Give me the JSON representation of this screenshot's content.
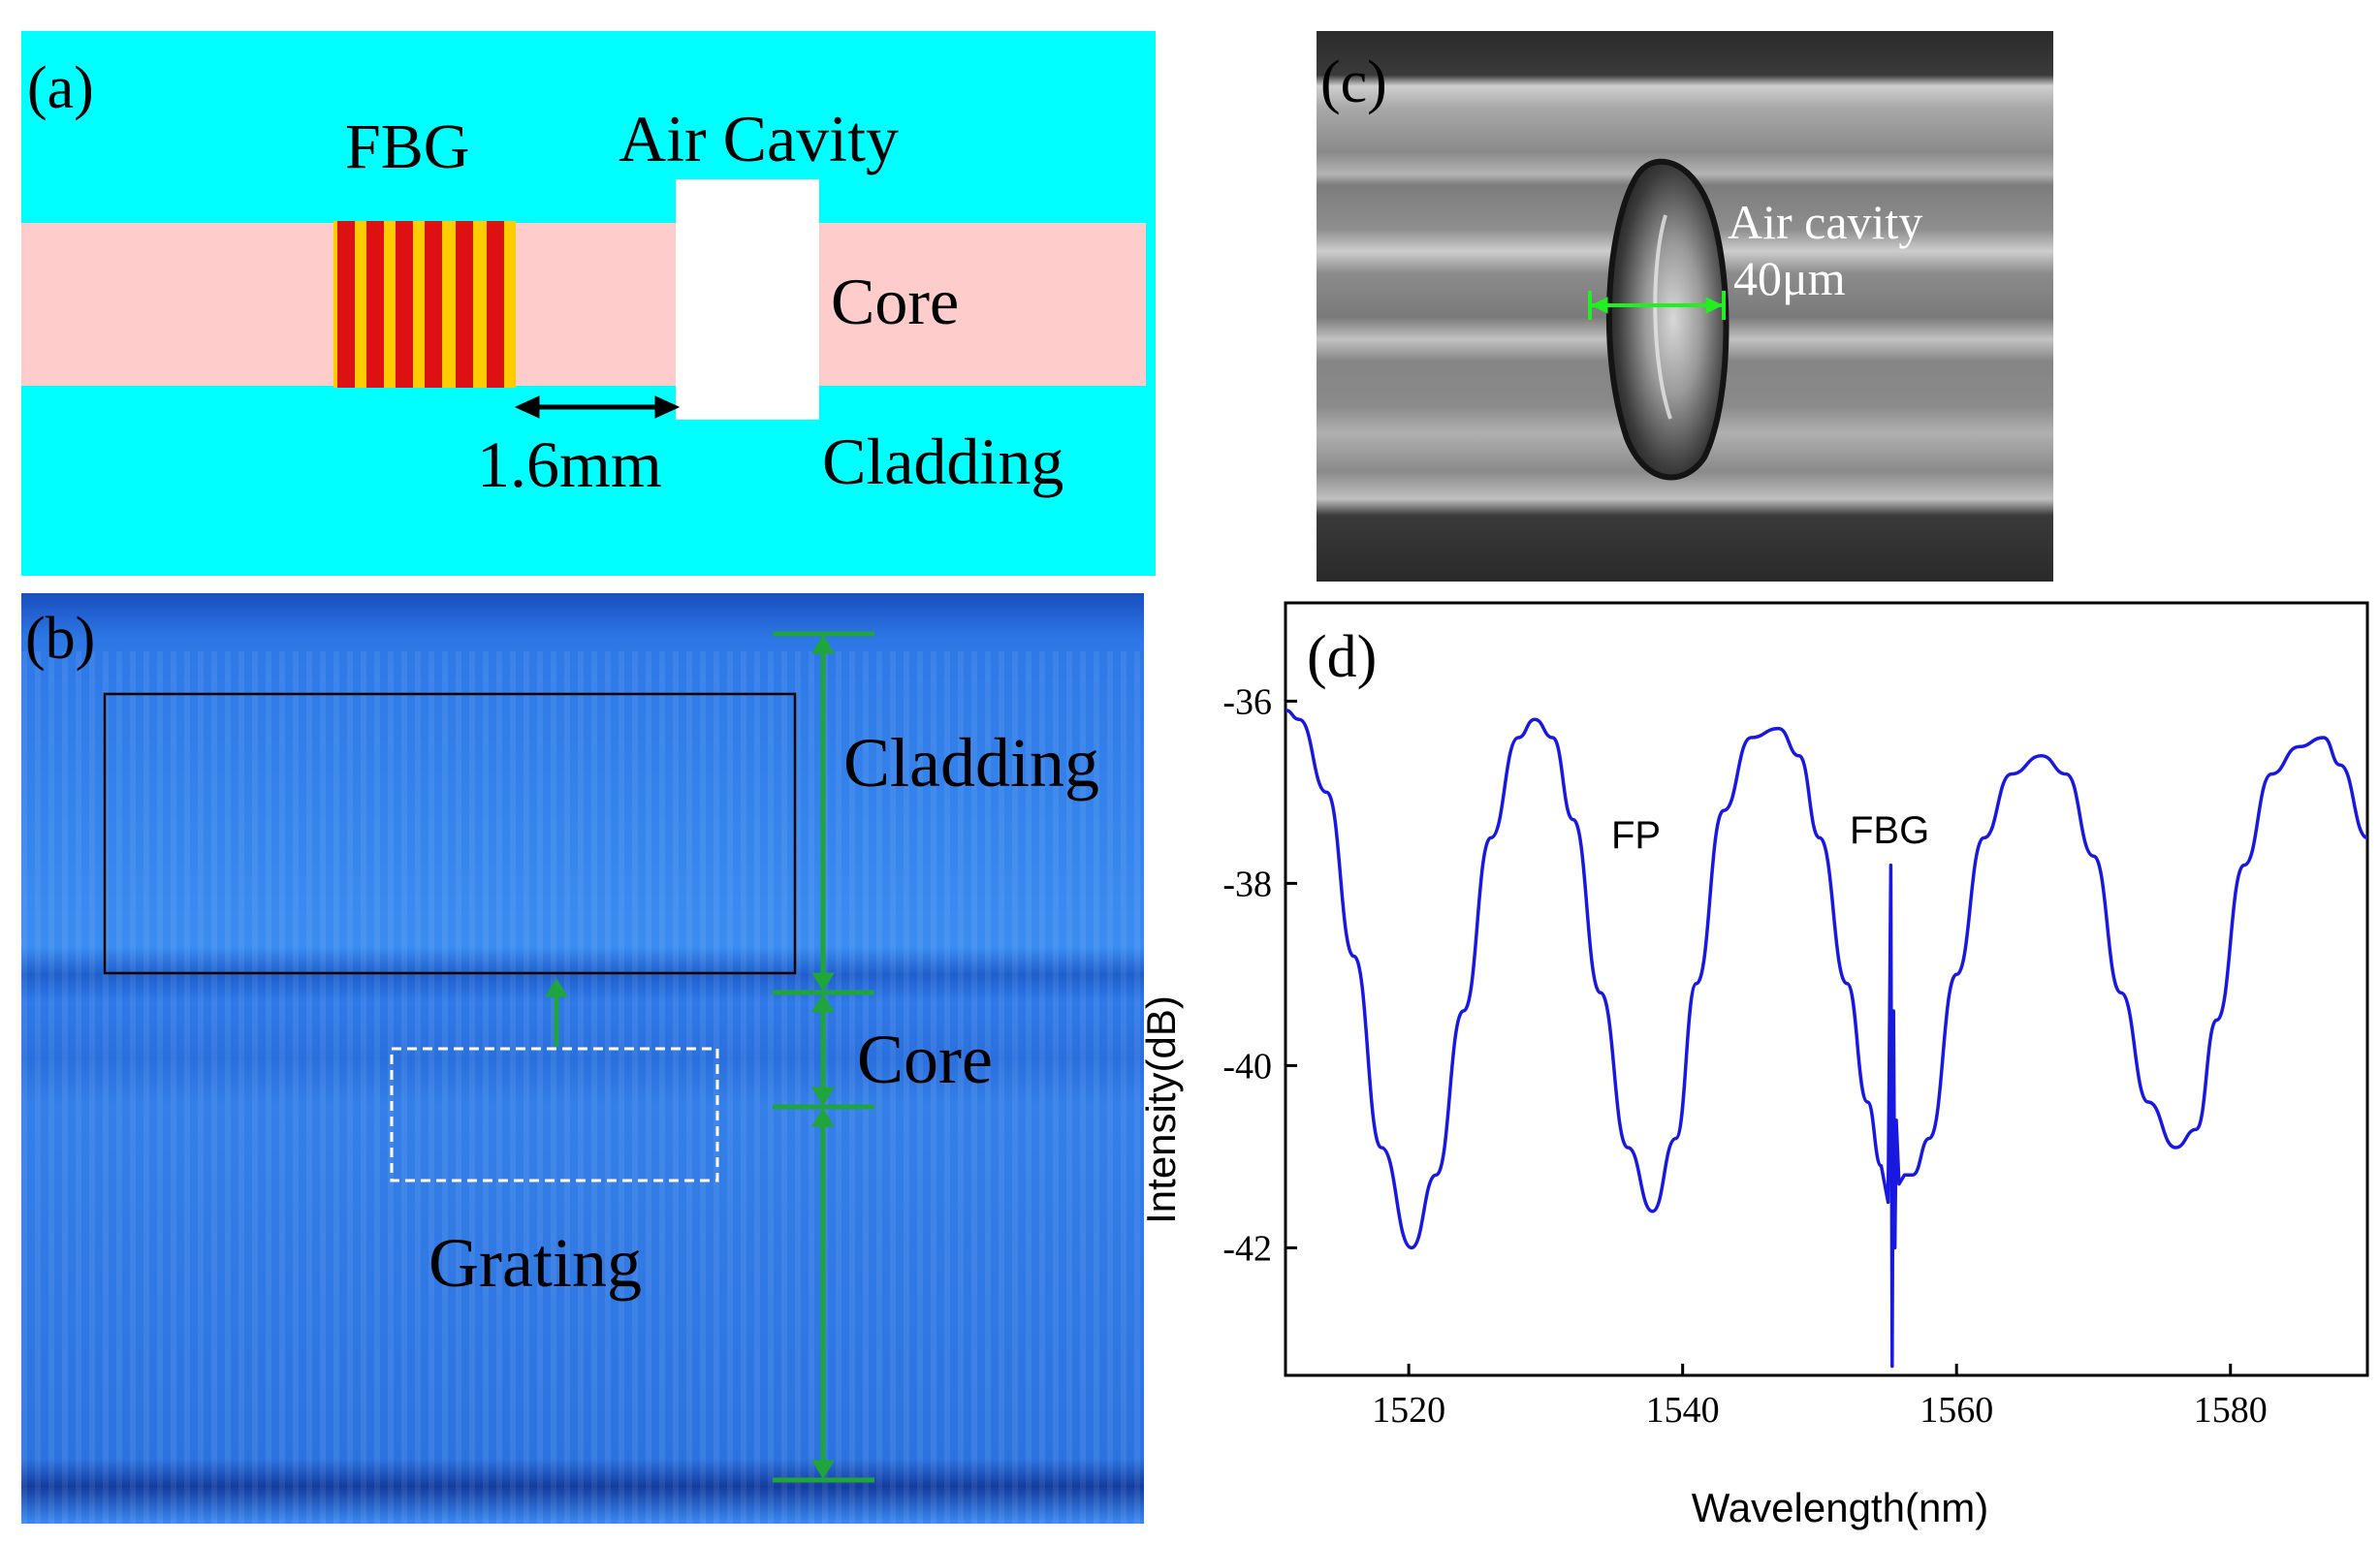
{
  "panel_a": {
    "label": "(a)",
    "fbg": "FBG",
    "air_cavity": "Air Cavity",
    "core": "Core",
    "cladding": "Cladding",
    "distance": "1.6mm",
    "colors": {
      "cladding": "#00ffff",
      "core": "#ffcccc",
      "grating": "#dd1111",
      "grating_gap": "#ffcc00"
    }
  },
  "panel_b": {
    "label": "(b)",
    "cladding": "Cladding",
    "core": "Core",
    "grating": "Grating",
    "colors": {
      "background": "#2f7fe8",
      "marker": "#1fa53a"
    }
  },
  "panel_c": {
    "label": "(c)",
    "air_cavity": "Air cavity",
    "size": "40μm",
    "colors": {
      "marker": "#22ee22"
    }
  },
  "panel_d": {
    "label": "(d)",
    "fp": "FP",
    "fbg": "FBG"
  },
  "chart_data": {
    "type": "line",
    "title": "",
    "xlabel": "Wavelength(nm)",
    "ylabel": "Intensity(dB)",
    "xlim": [
      1511,
      1590
    ],
    "ylim": [
      -43.4,
      -34.9
    ],
    "xticks": [
      1520,
      1540,
      1560,
      1580
    ],
    "yticks": [
      -42,
      -40,
      -38,
      -36
    ],
    "color": "#1818e0",
    "series": [
      {
        "name": "spectrum",
        "x": [
          1511,
          1512,
          1514,
          1516,
          1518,
          1520.2,
          1522,
          1524,
          1526,
          1528,
          1529.2,
          1530.5,
          1532,
          1534,
          1536,
          1537.8,
          1539.5,
          1541,
          1543,
          1545,
          1547,
          1548.5,
          1550,
          1552,
          1553.5,
          1554.5,
          1555,
          1555.2,
          1555.3,
          1555.4,
          1555.5,
          1555.6,
          1555.8,
          1556.2,
          1556.8,
          1558,
          1560,
          1562,
          1564,
          1566.2,
          1568,
          1570,
          1572,
          1574,
          1576,
          1577.5,
          1579,
          1581,
          1583,
          1585,
          1586.8,
          1588,
          1590
        ],
        "y": [
          -36.1,
          -36.2,
          -37.0,
          -38.8,
          -40.9,
          -42.0,
          -41.2,
          -39.4,
          -37.5,
          -36.4,
          -36.2,
          -36.4,
          -37.3,
          -39.2,
          -40.9,
          -41.6,
          -40.8,
          -39.1,
          -37.2,
          -36.4,
          -36.3,
          -36.6,
          -37.5,
          -39.1,
          -40.4,
          -41.1,
          -41.5,
          -37.8,
          -43.3,
          -39.4,
          -42.0,
          -40.6,
          -41.3,
          -41.2,
          -41.2,
          -40.8,
          -39.0,
          -37.5,
          -36.8,
          -36.6,
          -36.8,
          -37.7,
          -39.2,
          -40.4,
          -40.9,
          -40.7,
          -39.5,
          -37.8,
          -36.8,
          -36.5,
          -36.4,
          -36.7,
          -37.5
        ]
      }
    ],
    "annotations": [
      "FP",
      "FBG"
    ]
  }
}
